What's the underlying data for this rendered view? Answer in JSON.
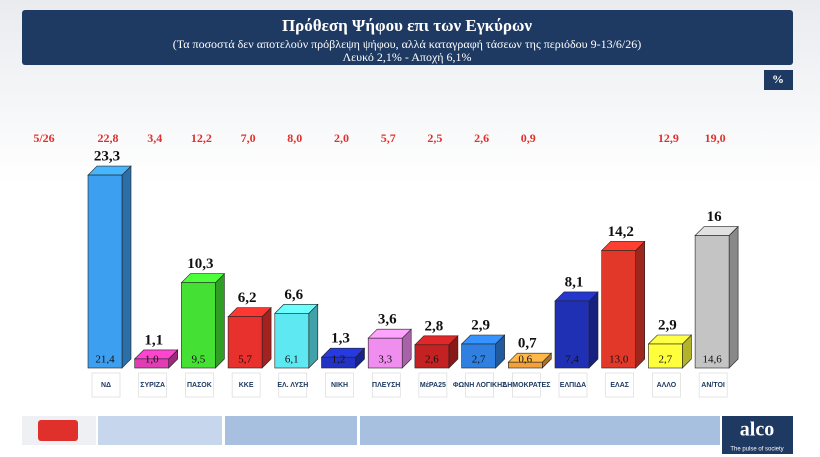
{
  "chart_data": {
    "type": "bar3d",
    "title": "Πρόθεση Ψήφου επι των Εγκύρων",
    "subtitle": "(Τα ποσοστά δεν αποτελούν πρόβλεψη ψήφου, αλλά καταγραφή τάσεων της περιόδου  9-13/6/26)",
    "note": "Λευκό 2,1% - Αποχή 6,1%",
    "unit_badge": "%",
    "categories": [
      "ΝΔ",
      "ΣΥΡΙΖΑ",
      "ΠΑΣΟΚ",
      "ΚΚΕ",
      "ΕΛ. ΛΥΣΗ",
      "ΝΙΚΗ",
      "ΠΛΕΥΣΗ",
      "ΜέΡΑ25",
      "ΦΩΝΗ ΛΟΓΙΚΗΣ",
      "ΔΗΜΟΚΡΑΤΕΣ",
      "ΕΛΠΙΔΑ",
      "ΕΛΑΣ",
      "ΑΛΛΟ",
      "ΑΝ/ΤΟΙ"
    ],
    "values": [
      23.3,
      1.1,
      10.3,
      6.2,
      6.6,
      1.3,
      3.6,
      2.8,
      2.9,
      0.7,
      8.1,
      14.2,
      2.9,
      16
    ],
    "value_labels": [
      "23,3",
      "1,1",
      "10,3",
      "6,2",
      "6,6",
      "1,3",
      "3,6",
      "2,8",
      "2,9",
      "0,7",
      "8,1",
      "14,2",
      "2,9",
      "16"
    ],
    "raw_values": [
      21.4,
      1.0,
      9.5,
      5.7,
      6.1,
      1.2,
      3.3,
      2.6,
      2.7,
      0.6,
      7.4,
      13.0,
      2.7,
      14.6
    ],
    "raw_value_labels": [
      "21,4",
      "1,0",
      "9,5",
      "5,7",
      "6,1",
      "1,2",
      "3,3",
      "2,6",
      "2,7",
      "0,6",
      "7,4",
      "13,0",
      "2,7",
      "14,6"
    ],
    "previous": {
      "label": "5/26",
      "values": [
        22.8,
        3.4,
        12.2,
        7.0,
        8.0,
        2.0,
        5.7,
        2.5,
        2.6,
        0.9,
        null,
        null,
        12.9,
        19.0
      ],
      "value_labels": [
        "22,8",
        "3,4",
        "12,2",
        "7,0",
        "8,0",
        "2,0",
        "5,7",
        "2,5",
        "2,6",
        "0,9",
        null,
        null,
        "12,9",
        "19,0"
      ]
    },
    "colors": [
      "#3d9ff0",
      "#e03cb4",
      "#44e034",
      "#e8302c",
      "#5ee8f2",
      "#2232c4",
      "#f08ef0",
      "#c42222",
      "#2f80e0",
      "#f2a03c",
      "#2030b4",
      "#e2382a",
      "#ffff3c",
      "#c4c4c4"
    ],
    "ylim": [
      0,
      25
    ],
    "footer": {
      "brand": "alco",
      "tagline": "The pulse of society"
    }
  }
}
